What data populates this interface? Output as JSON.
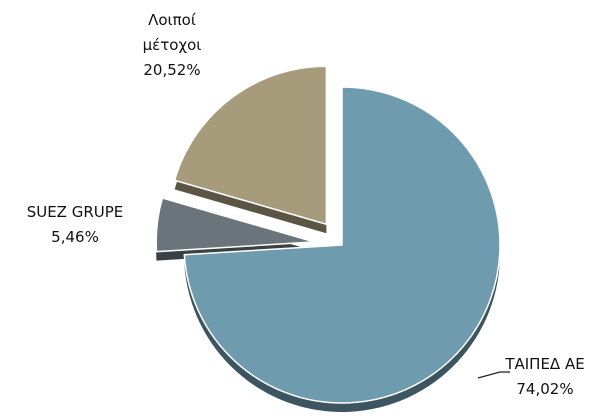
{
  "chart_data": {
    "type": "pie",
    "categories": [
      "ΤΑΙΠΕΔ ΑΕ",
      "SUEZ GRUPE",
      "Λοιποί μέτοχοι"
    ],
    "values": [
      74.02,
      5.46,
      20.52
    ],
    "value_labels": [
      "74,02%",
      "5,46%",
      "20,52%"
    ],
    "colors": [
      "#6f9bae",
      "#6b747b",
      "#a69b7b"
    ]
  }
}
